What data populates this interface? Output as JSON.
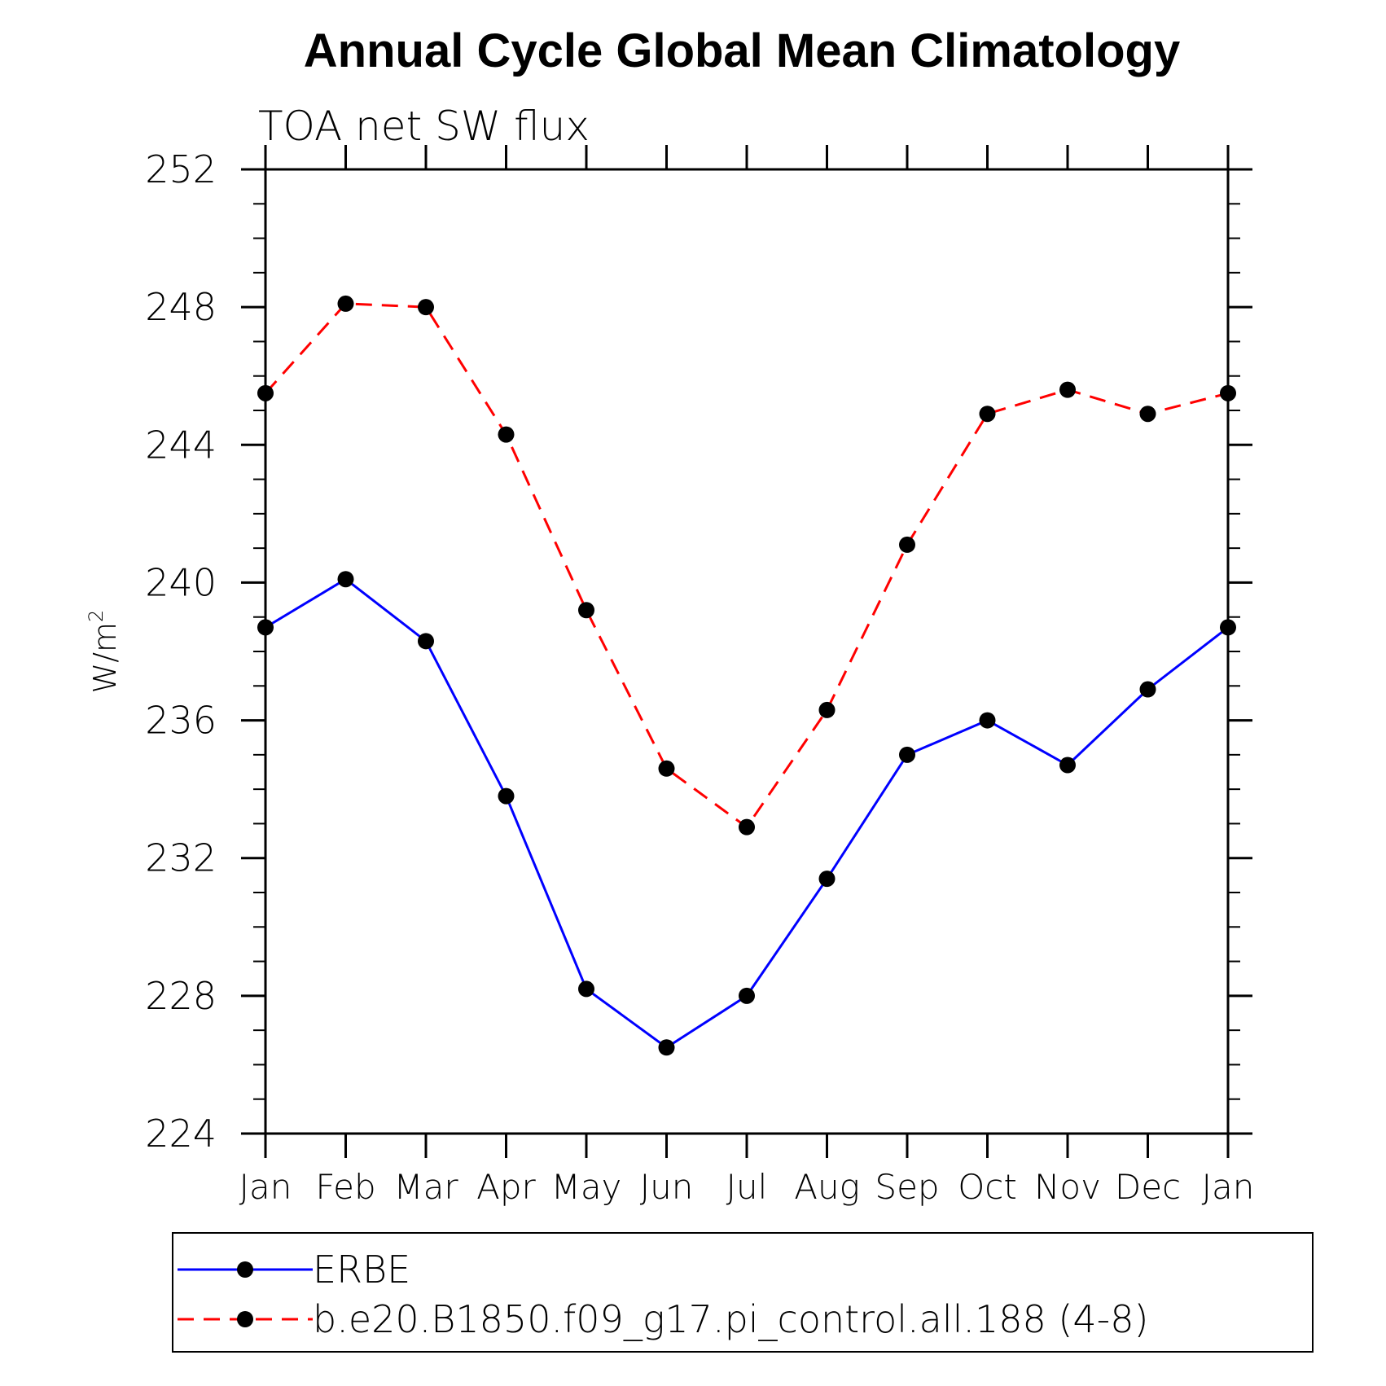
{
  "chart_data": {
    "type": "line",
    "title": "Annual Cycle Global Mean Climatology",
    "subtitle": "TOA net SW flux",
    "ylabel": "W/m",
    "ylabel_superscript": "2",
    "xlabel": "",
    "categories": [
      "Jan",
      "Feb",
      "Mar",
      "Apr",
      "May",
      "Jun",
      "Jul",
      "Aug",
      "Sep",
      "Oct",
      "Nov",
      "Dec",
      "Jan"
    ],
    "ylim": [
      224,
      252
    ],
    "y_ticks": [
      224,
      228,
      232,
      236,
      240,
      244,
      248,
      252
    ],
    "y_minor_step": 1,
    "grid": false,
    "legend_position": "bottom",
    "series": [
      {
        "name": "ERBE",
        "color": "#0000ff",
        "line_style": "solid",
        "marker": "filled-circle",
        "marker_color": "#000000",
        "values": [
          238.7,
          240.1,
          238.3,
          233.8,
          228.2,
          226.5,
          228.0,
          231.4,
          235.0,
          236.0,
          234.7,
          236.9,
          238.7
        ]
      },
      {
        "name": "b.e20.B1850.f09_g17.pi_control.all.188 (4-8)",
        "color": "#ff0000",
        "line_style": "dashed",
        "marker": "filled-circle",
        "marker_color": "#000000",
        "values": [
          245.5,
          248.1,
          248.0,
          244.3,
          239.2,
          234.6,
          232.9,
          236.3,
          241.1,
          244.9,
          245.6,
          244.9,
          245.5
        ]
      }
    ]
  }
}
